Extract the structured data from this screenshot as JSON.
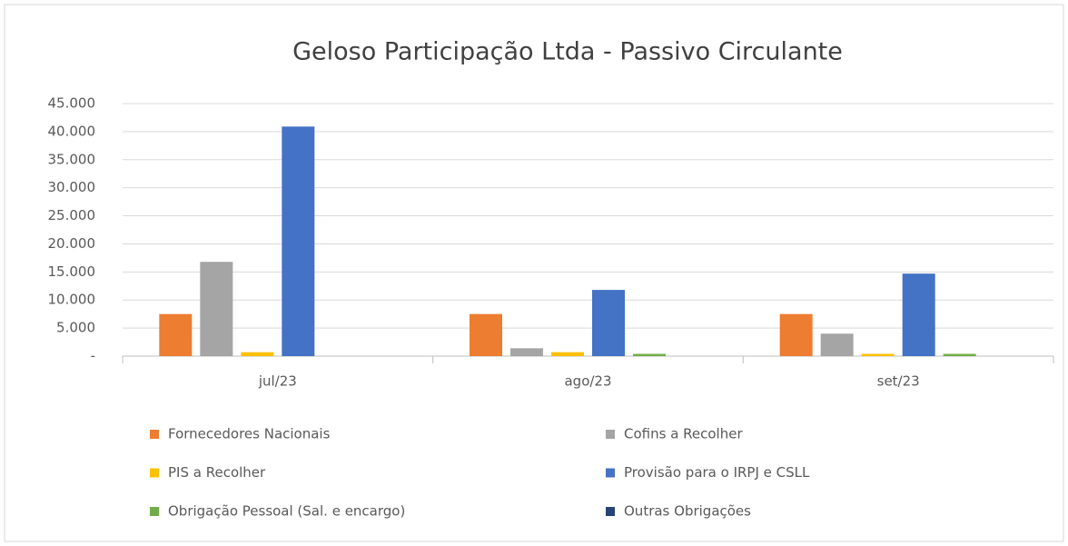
{
  "chart_data": {
    "type": "bar",
    "title": "Geloso Participação Ltda - Passivo Circulante",
    "categories": [
      "jul/23",
      "ago/23",
      "set/23"
    ],
    "series": [
      {
        "name": "Fornecedores Nacionais",
        "color": "#ed7d31",
        "values": [
          7500,
          7500,
          7500
        ]
      },
      {
        "name": "Cofins a Recolher",
        "color": "#a5a5a5",
        "values": [
          16800,
          1400,
          4000
        ]
      },
      {
        "name": "PIS a Recolher",
        "color": "#ffc000",
        "values": [
          700,
          700,
          400
        ]
      },
      {
        "name": "Provisão para o IRPJ e CSLL",
        "color": "#4472c4",
        "values": [
          40900,
          11800,
          14700
        ]
      },
      {
        "name": "Obrigação Pessoal (Sal. e encargo)",
        "color": "#70ad47",
        "values": [
          0,
          400,
          400
        ]
      },
      {
        "name": "Outras Obrigações",
        "color": "#264478",
        "values": [
          0,
          0,
          0
        ]
      }
    ],
    "ylim": [
      0,
      45000
    ],
    "yticks": [
      {
        "value": 0,
        "label": "-"
      },
      {
        "value": 5000,
        "label": "5.000"
      },
      {
        "value": 10000,
        "label": "10.000"
      },
      {
        "value": 15000,
        "label": "15.000"
      },
      {
        "value": 20000,
        "label": "20.000"
      },
      {
        "value": 25000,
        "label": "25.000"
      },
      {
        "value": 30000,
        "label": "30.000"
      },
      {
        "value": 35000,
        "label": "35.000"
      },
      {
        "value": 40000,
        "label": "40.000"
      },
      {
        "value": 45000,
        "label": "45.000"
      }
    ],
    "grid": true,
    "legend": "bottom"
  }
}
